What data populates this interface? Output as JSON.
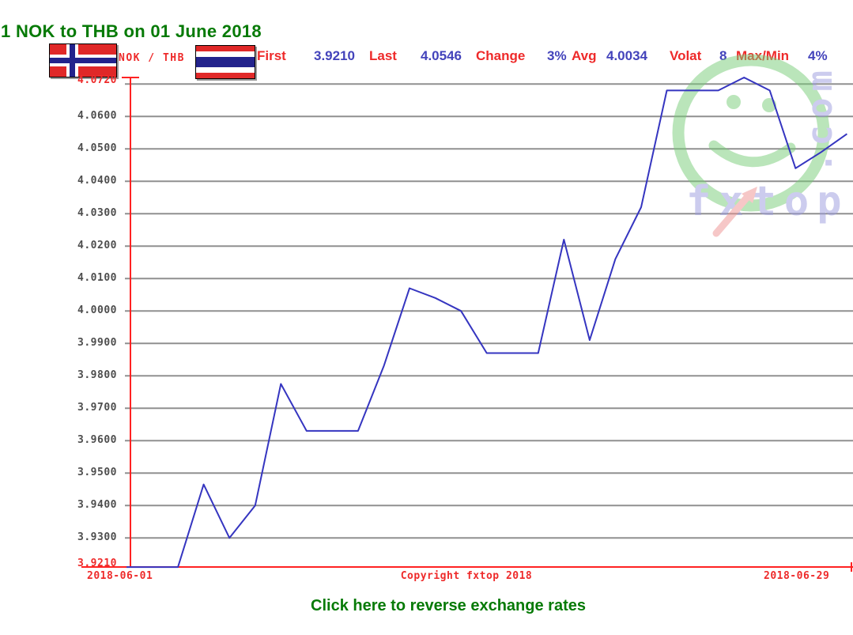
{
  "header": {
    "title": "1 NOK to THB on 01 June 2018"
  },
  "legend": {
    "pair_label": "NOK / THB",
    "left_flag": "norway-flag",
    "right_flag": "thailand-flag",
    "stats": [
      {
        "label": "First",
        "value": "3.9210"
      },
      {
        "label": "Last",
        "value": "4.0546"
      },
      {
        "label": "Change",
        "value": "3%"
      },
      {
        "label": "Avg",
        "value": "4.0034"
      },
      {
        "label": "Volat",
        "value": "8"
      },
      {
        "label": "Max/Min",
        "value": "4%"
      }
    ]
  },
  "axis": {
    "date_left": "2018-06-01",
    "date_right": "2018-06-29"
  },
  "footer": {
    "copyright": "Copyright fxtop 2018",
    "link_label": "Click here to reverse exchange rates"
  },
  "watermark": {
    "brand": "fxtop",
    "suffix": ".com"
  },
  "colors": {
    "title_green": "#067a06",
    "label_red": "#ee2a2a",
    "value_blue": "#4343bb",
    "axis_red": "#ff2222",
    "grid_gray": "#909090",
    "line_blue": "#3535c0",
    "ylabel_gray": "#4d4d4d",
    "watermark_green": "#77cc77",
    "watermark_blue": "#9a9ade",
    "watermark_arrow_red": "#ee9090"
  },
  "chart_data": {
    "type": "line",
    "title": "1 NOK to THB on 01 June 2018",
    "series_name": "NOK/THB",
    "x": [
      "2018-06-01",
      "2018-06-02",
      "2018-06-03",
      "2018-06-04",
      "2018-06-05",
      "2018-06-06",
      "2018-06-07",
      "2018-06-08",
      "2018-06-09",
      "2018-06-10",
      "2018-06-11",
      "2018-06-12",
      "2018-06-13",
      "2018-06-14",
      "2018-06-15",
      "2018-06-16",
      "2018-06-17",
      "2018-06-18",
      "2018-06-19",
      "2018-06-20",
      "2018-06-21",
      "2018-06-22",
      "2018-06-23",
      "2018-06-24",
      "2018-06-25",
      "2018-06-26",
      "2018-06-27",
      "2018-06-28",
      "2018-06-29"
    ],
    "values": [
      3.921,
      3.921,
      3.921,
      3.9465,
      3.93,
      3.94,
      3.9775,
      3.963,
      3.963,
      3.963,
      3.983,
      4.007,
      4.004,
      4.0,
      3.987,
      3.987,
      3.987,
      4.022,
      3.991,
      4.016,
      4.032,
      4.068,
      4.068,
      4.068,
      4.072,
      4.068,
      4.044,
      4.049,
      4.0546
    ],
    "first": 3.921,
    "last": 4.0546,
    "avg": 4.0034,
    "max": 4.072,
    "min": 3.921,
    "ylim": [
      3.921,
      4.072
    ],
    "grid": true,
    "gridlines": [
      3.93,
      3.94,
      3.95,
      3.96,
      3.97,
      3.98,
      3.99,
      4.0,
      4.01,
      4.02,
      4.03,
      4.04,
      4.05,
      4.06,
      4.07
    ],
    "y_ticks": [
      {
        "label": "4.0720",
        "value": 4.072,
        "emphasis": true
      },
      {
        "label": "4.0600",
        "value": 4.06
      },
      {
        "label": "4.0500",
        "value": 4.05
      },
      {
        "label": "4.0400",
        "value": 4.04
      },
      {
        "label": "4.0300",
        "value": 4.03
      },
      {
        "label": "4.0200",
        "value": 4.02
      },
      {
        "label": "4.0100",
        "value": 4.01
      },
      {
        "label": "4.0000",
        "value": 4.0
      },
      {
        "label": "3.9900",
        "value": 3.99
      },
      {
        "label": "3.9800",
        "value": 3.98
      },
      {
        "label": "3.9700",
        "value": 3.97
      },
      {
        "label": "3.9600",
        "value": 3.96
      },
      {
        "label": "3.9500",
        "value": 3.95
      },
      {
        "label": "3.9400",
        "value": 3.94
      },
      {
        "label": "3.9300",
        "value": 3.93
      },
      {
        "label": "3.9210",
        "value": 3.921,
        "emphasis": true
      }
    ],
    "x_tick_labels": [
      "2018-06-01",
      "2018-06-29"
    ],
    "legend_position": "top"
  }
}
